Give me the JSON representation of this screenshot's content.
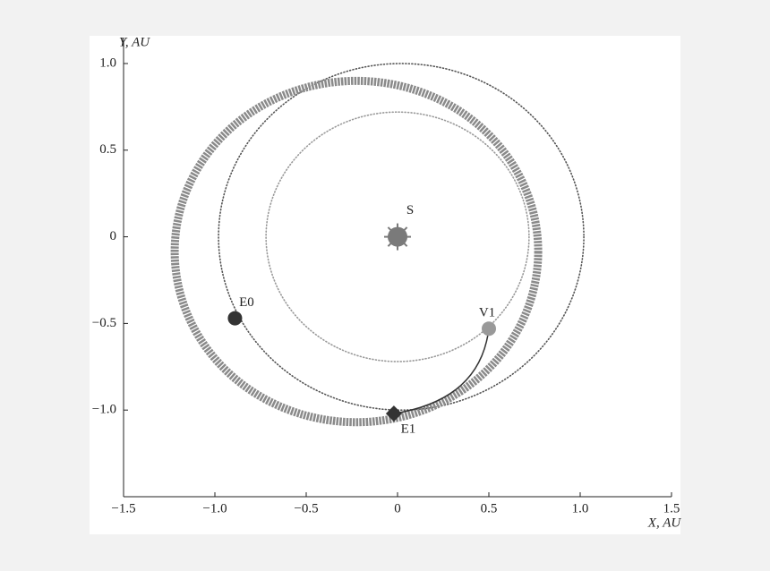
{
  "chart_data": {
    "type": "scatter",
    "x_label": "X, AU",
    "y_label": "Y, AU",
    "xlim": [
      -1.5,
      1.5
    ],
    "ylim": [
      -1.5,
      1.16
    ],
    "xticks": [
      {
        "value": -1.5,
        "label": "−1.5"
      },
      {
        "value": -1.0,
        "label": "−1.0"
      },
      {
        "value": -0.5,
        "label": "−0.5"
      },
      0,
      0.5,
      {
        "value": 1.0,
        "label": "1.0"
      },
      1.5
    ],
    "yticks": [
      {
        "value": -1.0,
        "label": "−1.0"
      },
      {
        "value": -0.5,
        "label": "−0.5"
      },
      0,
      0.5,
      {
        "value": 1.0,
        "label": "1.0"
      }
    ],
    "orbits": [
      {
        "cx": 0.02,
        "cy": 0,
        "rx": 1.0,
        "ry": 1.0,
        "color": "#555555",
        "style": "dotted"
      },
      {
        "cx": 0,
        "cy": 0,
        "rx": 0.72,
        "ry": 0.72,
        "color": "#999999",
        "style": "dotted"
      },
      {
        "cx": -0.225,
        "cy": -0.085,
        "rx": 0.995,
        "ry": 0.985,
        "color": "#8a8a8a",
        "style": "band"
      }
    ],
    "points": [
      {
        "name": "S",
        "x": 0,
        "y": 0,
        "color": "#7a7a7a",
        "marker": "sun"
      },
      {
        "name": "E0",
        "x": -0.89,
        "y": -0.47,
        "color": "#333333",
        "marker": "circle"
      },
      {
        "name": "E1",
        "x": -0.02,
        "y": -1.02,
        "color": "#333333",
        "marker": "diamond"
      },
      {
        "name": "V1",
        "x": 0.5,
        "y": -0.53,
        "color": "#999999",
        "marker": "circle"
      }
    ]
  }
}
